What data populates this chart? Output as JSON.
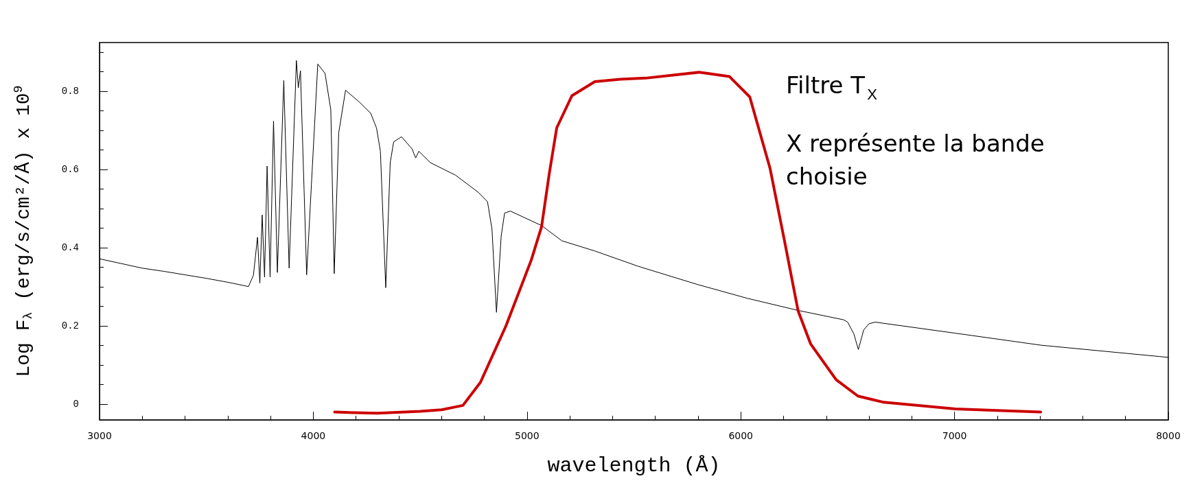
{
  "chart_data": {
    "type": "line",
    "xlabel": "wavelength (Å)",
    "ylabel": "Log F$_{λ}$ (erg/s/cm²/Å) x 10$^{9}$",
    "annotations": [
      "Filtre T$_{X}$",
      "X représente la bande choisie"
    ],
    "xlim": [
      3000,
      8000
    ],
    "xticks": [
      3000,
      4000,
      5000,
      6000,
      7000,
      8000
    ],
    "ylim": [
      -0.04,
      0.925
    ],
    "yticks": [
      0,
      0.2,
      0.4,
      0.6,
      0.8
    ],
    "grid": false,
    "marker": "none",
    "line_style": "solid",
    "series": [
      {
        "color": "#000000",
        "x": [
          3000,
          3100,
          3200,
          3300,
          3400,
          3500,
          3600,
          3697,
          3720,
          3739,
          3750,
          3761,
          3772,
          3784,
          3798,
          3814,
          3832,
          3862,
          3887,
          3921,
          3930,
          3940,
          3969,
          4021,
          4055,
          4082,
          4098,
          4119,
          4151,
          4215,
          4269,
          4296,
          4314,
          4339,
          4360,
          4376,
          4413,
          4462,
          4479,
          4494,
          4547,
          4665,
          4772,
          4815,
          4836,
          4857,
          4879,
          4895,
          4922,
          5068,
          5163,
          5317,
          5519,
          5793,
          6030,
          6268,
          6481,
          6500,
          6529,
          6550,
          6575,
          6600,
          6629,
          7000,
          7405,
          7960,
          8000
        ],
        "values": [
          0.372,
          0.36,
          0.348,
          0.34,
          0.331,
          0.322,
          0.312,
          0.301,
          0.33,
          0.427,
          0.31,
          0.484,
          0.325,
          0.609,
          0.325,
          0.724,
          0.337,
          0.828,
          0.348,
          0.879,
          0.809,
          0.853,
          0.331,
          0.87,
          0.846,
          0.753,
          0.334,
          0.694,
          0.803,
          0.773,
          0.744,
          0.706,
          0.647,
          0.298,
          0.618,
          0.671,
          0.684,
          0.653,
          0.63,
          0.647,
          0.618,
          0.586,
          0.542,
          0.518,
          0.448,
          0.235,
          0.43,
          0.489,
          0.494,
          0.457,
          0.418,
          0.392,
          0.353,
          0.307,
          0.271,
          0.24,
          0.216,
          0.21,
          0.18,
          0.14,
          0.19,
          0.206,
          0.21,
          0.182,
          0.151,
          0.122,
          0.12
        ]
      },
      {
        "color": "#cc0000",
        "x": [
          4100,
          4300,
          4500,
          4600,
          4700,
          4782,
          4901,
          5020,
          5068,
          5104,
          5139,
          5210,
          5317,
          5436,
          5555,
          5805,
          5947,
          6042,
          6137,
          6208,
          6268,
          6327,
          6446,
          6548,
          6669,
          7004,
          7200,
          7403
        ],
        "values": [
          -0.02,
          -0.023,
          -0.018,
          -0.014,
          -0.003,
          0.056,
          0.2,
          0.369,
          0.454,
          0.59,
          0.707,
          0.789,
          0.825,
          0.831,
          0.834,
          0.849,
          0.838,
          0.786,
          0.603,
          0.408,
          0.239,
          0.154,
          0.063,
          0.021,
          0.005,
          -0.012,
          -0.016,
          -0.02
        ]
      }
    ]
  }
}
